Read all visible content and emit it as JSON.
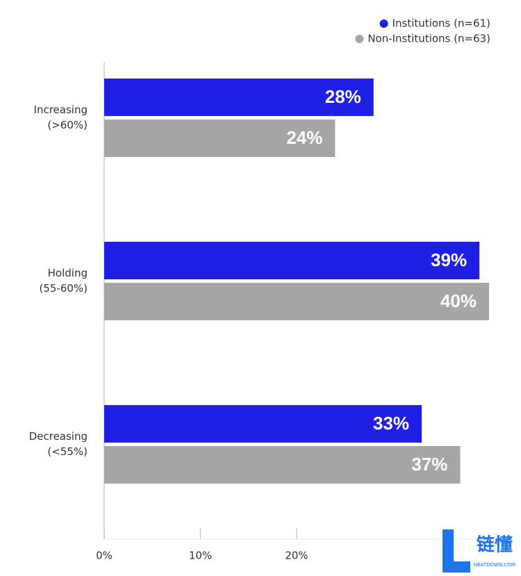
{
  "chart_data": {
    "type": "barh",
    "categories": [
      [
        "Increasing",
        "(>60%)"
      ],
      [
        "Holding",
        "(55-60%)"
      ],
      [
        "Decreasing",
        "(<55%)"
      ]
    ],
    "series": [
      {
        "name": "Institutions (n=61)",
        "color": "#2020e4",
        "values": [
          28,
          39,
          33
        ],
        "value_labels": [
          "28%",
          "39%",
          "33%"
        ]
      },
      {
        "name": "Non-Institutions (n=63)",
        "color": "#a6a6a6",
        "values": [
          24,
          40,
          37
        ],
        "value_labels": [
          "24%",
          "40%",
          "37%"
        ]
      }
    ],
    "xlim": [
      0,
      40
    ],
    "xticks": [
      {
        "value": 0,
        "label": "0%"
      },
      {
        "value": 10,
        "label": "10%"
      },
      {
        "value": 20,
        "label": "20%"
      }
    ],
    "legend": "top-right",
    "watermark": {
      "text": "链懂",
      "subtext": "NEATDOWN.COM"
    }
  }
}
